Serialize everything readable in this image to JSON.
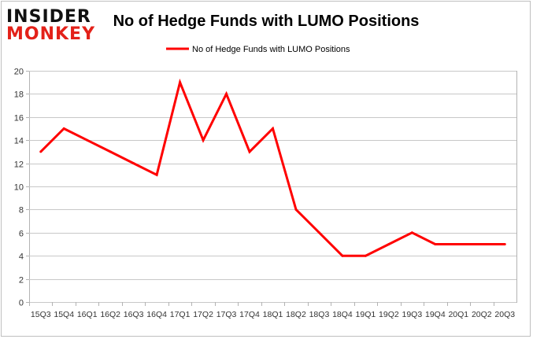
{
  "logo": {
    "line1": "INSIDER",
    "line2": "MONKEY"
  },
  "chart_data": {
    "type": "line",
    "title": "No of Hedge Funds with LUMO Positions",
    "legend_position": "top-center",
    "grid": true,
    "xlabel": "",
    "ylabel": "",
    "ylim": [
      0,
      20
    ],
    "yticks": [
      0,
      2,
      4,
      6,
      8,
      10,
      12,
      14,
      16,
      18,
      20
    ],
    "categories": [
      "15Q3",
      "15Q4",
      "16Q1",
      "16Q2",
      "16Q3",
      "16Q4",
      "17Q1",
      "17Q2",
      "17Q3",
      "17Q4",
      "18Q1",
      "18Q2",
      "18Q3",
      "18Q4",
      "19Q1",
      "19Q2",
      "19Q3",
      "19Q4",
      "20Q1",
      "20Q2",
      "20Q3"
    ],
    "series": [
      {
        "name": "No of Hedge Funds with LUMO Positions",
        "color": "#ff0000",
        "values": [
          13,
          15,
          14,
          13,
          12,
          11,
          19,
          14,
          18,
          13,
          15,
          8,
          6,
          4,
          4,
          5,
          6,
          5,
          5,
          5,
          5
        ]
      }
    ]
  }
}
